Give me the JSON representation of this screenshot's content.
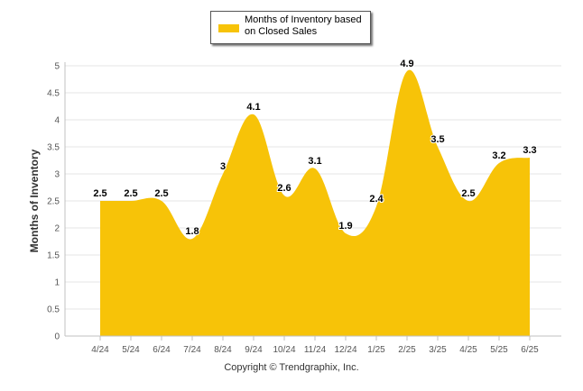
{
  "chart_data": {
    "type": "area",
    "categories": [
      "4/24",
      "5/24",
      "6/24",
      "7/24",
      "8/24",
      "9/24",
      "10/24",
      "11/24",
      "12/24",
      "1/25",
      "2/25",
      "3/25",
      "4/25",
      "5/25",
      "6/25"
    ],
    "series": [
      {
        "name": "Months of Inventory based on Closed Sales",
        "values": [
          2.5,
          2.5,
          2.5,
          1.8,
          3,
          4.1,
          2.6,
          3.1,
          1.9,
          2.4,
          4.9,
          3.5,
          2.5,
          3.2,
          3.3
        ]
      }
    ],
    "data_labels": [
      "2.5",
      "2.5",
      "2.5",
      "1.8",
      "3",
      "4.1",
      "2.6",
      "3.1",
      "1.9",
      "2.4",
      "4.9",
      "3.5",
      "2.5",
      "3.2",
      "3.3"
    ],
    "ylabel": "Months of Inventory",
    "xlabel": "",
    "ylim": [
      0,
      5
    ],
    "yticks": [
      "0",
      "0.5",
      "1",
      "1.5",
      "2",
      "2.5",
      "3",
      "3.5",
      "4",
      "4.5",
      "5"
    ],
    "grid": true,
    "legend_position": "top-center",
    "fill_color": "#F7C308"
  },
  "legend": {
    "line1": "Months of Inventory based",
    "line2": "on Closed Sales"
  },
  "footer": {
    "copyright": "Copyright © Trendgraphix, Inc."
  }
}
